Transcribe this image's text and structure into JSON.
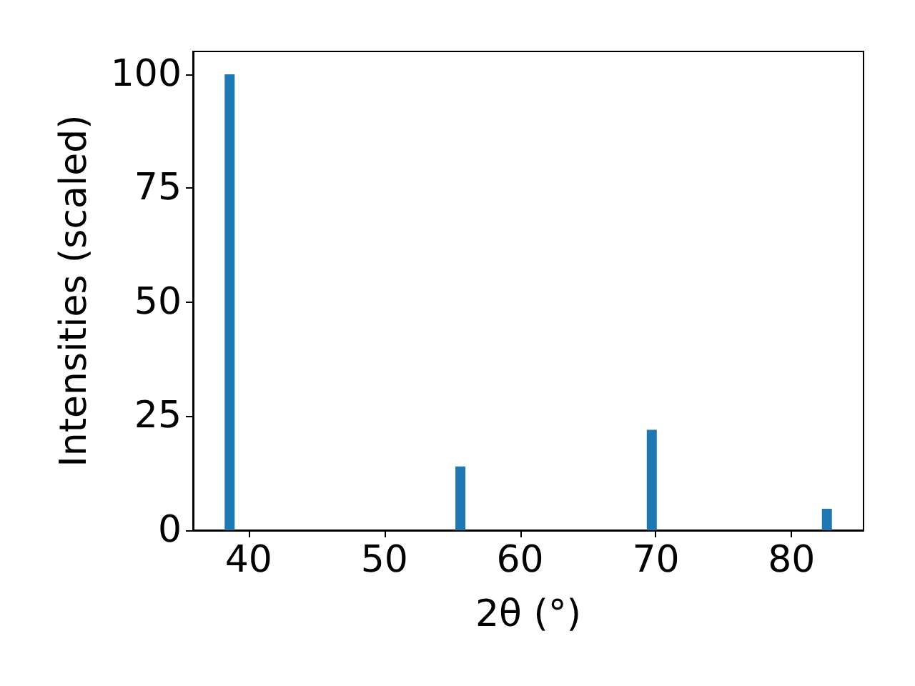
{
  "chart_data": {
    "type": "bar",
    "xlabel": "2θ (°)",
    "ylabel": "Intensities (scaled)",
    "x": [
      38.6,
      55.6,
      69.7,
      82.6
    ],
    "values": [
      100,
      14,
      22,
      4.7
    ],
    "color": "#1f77b4",
    "xlim": [
      35.9,
      85.3
    ],
    "xticks": [
      40,
      50,
      60,
      70,
      80
    ],
    "ylim": [
      0,
      105
    ],
    "yticks": [
      0,
      25,
      50,
      75,
      100
    ],
    "grid": false
  }
}
